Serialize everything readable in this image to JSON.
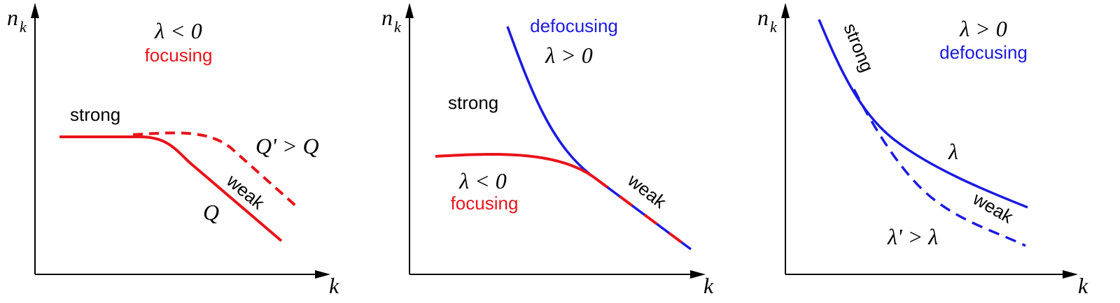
{
  "panels": [
    {
      "y_label": {
        "main": "n",
        "sub": "k"
      },
      "x_label": "k",
      "condition": "λ < 0",
      "regime": "focusing",
      "labels": {
        "strong": "strong",
        "weak": "weak",
        "q_prime": "Q' > Q",
        "q": "Q"
      }
    },
    {
      "y_label": {
        "main": "n",
        "sub": "k"
      },
      "x_label": "k",
      "defocusing": "defocusing",
      "defocusing_condition": "λ > 0",
      "labels": {
        "strong": "strong",
        "weak": "weak"
      },
      "focusing_condition": "λ < 0",
      "focusing": "focusing"
    },
    {
      "y_label": {
        "main": "n",
        "sub": "k"
      },
      "x_label": "k",
      "condition": "λ > 0",
      "regime": "defocusing",
      "labels": {
        "strong": "strong",
        "lambda": "λ",
        "weak": "weak",
        "lambda_prime": "λ' > λ"
      }
    }
  ]
}
